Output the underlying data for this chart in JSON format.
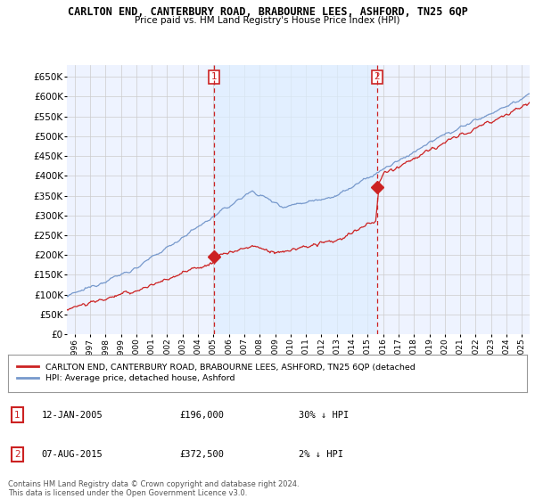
{
  "title": "CARLTON END, CANTERBURY ROAD, BRABOURNE LEES, ASHFORD, TN25 6QP",
  "subtitle": "Price paid vs. HM Land Registry's House Price Index (HPI)",
  "ylabel_ticks": [
    "£0",
    "£50K",
    "£100K",
    "£150K",
    "£200K",
    "£250K",
    "£300K",
    "£350K",
    "£400K",
    "£450K",
    "£500K",
    "£550K",
    "£600K",
    "£650K"
  ],
  "ylim": [
    0,
    680000
  ],
  "xlim_start": 1995.5,
  "xlim_end": 2025.5,
  "hpi_color": "#7799cc",
  "price_color": "#cc2222",
  "shade_color": "#ddeeff",
  "marker1_x": 2005.04,
  "marker1_y": 196000,
  "marker2_x": 2015.6,
  "marker2_y": 372500,
  "legend_label1": "CARLTON END, CANTERBURY ROAD, BRABOURNE LEES, ASHFORD, TN25 6QP (detached",
  "legend_label2": "HPI: Average price, detached house, Ashford",
  "table_rows": [
    {
      "num": "1",
      "date": "12-JAN-2005",
      "price": "£196,000",
      "hpi": "30% ↓ HPI"
    },
    {
      "num": "2",
      "date": "07-AUG-2015",
      "price": "£372,500",
      "hpi": "2% ↓ HPI"
    }
  ],
  "footer": "Contains HM Land Registry data © Crown copyright and database right 2024.\nThis data is licensed under the Open Government Licence v3.0.",
  "bg_color": "#ffffff",
  "grid_color": "#cccccc",
  "plot_bg": "#eef3ff"
}
